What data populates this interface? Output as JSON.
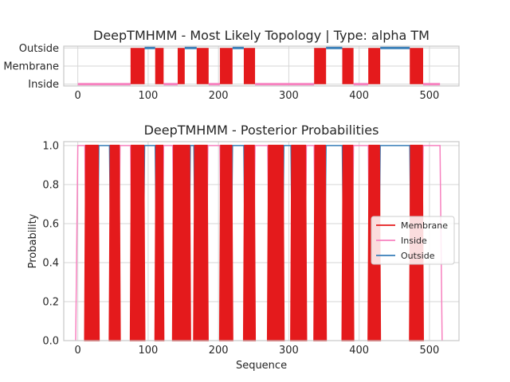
{
  "chart_data": [
    {
      "type": "line",
      "title": "DeepTMHMM - Most Likely Topology | Type: alpha TM",
      "xlim": [
        -20,
        542
      ],
      "ylim": [
        -0.1,
        2.1
      ],
      "x_ticks": [
        "0",
        "100",
        "200",
        "300",
        "400",
        "500"
      ],
      "x_tick_values": [
        0,
        100,
        200,
        300,
        400,
        500
      ],
      "y_ticks": [
        "Inside",
        "Membrane",
        "Outside"
      ],
      "y_tick_values": [
        0,
        1,
        2
      ],
      "grid": true,
      "colors": {
        "inside": "#f781bf",
        "membrane": "#e41a1c",
        "outside": "#377eb8"
      },
      "segments": [
        {
          "region": "Inside",
          "start": 0,
          "end": 75
        },
        {
          "region": "Membrane",
          "start": 75,
          "end": 95
        },
        {
          "region": "Outside",
          "start": 95,
          "end": 110
        },
        {
          "region": "Membrane",
          "start": 110,
          "end": 122
        },
        {
          "region": "Inside",
          "start": 122,
          "end": 142
        },
        {
          "region": "Membrane",
          "start": 142,
          "end": 152
        },
        {
          "region": "Outside",
          "start": 152,
          "end": 169
        },
        {
          "region": "Membrane",
          "start": 169,
          "end": 186
        },
        {
          "region": "Inside",
          "start": 186,
          "end": 202
        },
        {
          "region": "Membrane",
          "start": 202,
          "end": 220
        },
        {
          "region": "Outside",
          "start": 220,
          "end": 236
        },
        {
          "region": "Membrane",
          "start": 236,
          "end": 252
        },
        {
          "region": "Inside",
          "start": 252,
          "end": 336
        },
        {
          "region": "Membrane",
          "start": 336,
          "end": 353
        },
        {
          "region": "Outside",
          "start": 353,
          "end": 376
        },
        {
          "region": "Membrane",
          "start": 376,
          "end": 392
        },
        {
          "region": "Inside",
          "start": 392,
          "end": 413
        },
        {
          "region": "Membrane",
          "start": 413,
          "end": 430
        },
        {
          "region": "Outside",
          "start": 430,
          "end": 472
        },
        {
          "region": "Membrane",
          "start": 472,
          "end": 491
        },
        {
          "region": "Inside",
          "start": 491,
          "end": 515
        }
      ]
    },
    {
      "type": "line",
      "title": "DeepTMHMM - Posterior Probabilities",
      "xlabel": "Sequence",
      "ylabel": "Probability",
      "xlim": [
        -20,
        542
      ],
      "ylim": [
        0.0,
        1.02
      ],
      "x_ticks": [
        "0",
        "100",
        "200",
        "300",
        "400",
        "500"
      ],
      "x_tick_values": [
        0,
        100,
        200,
        300,
        400,
        500
      ],
      "y_ticks": [
        "0.0",
        "0.2",
        "0.4",
        "0.6",
        "0.8",
        "1.0"
      ],
      "y_tick_values": [
        0.0,
        0.2,
        0.4,
        0.6,
        0.8,
        1.0
      ],
      "grid": true,
      "legend_position": "center-right",
      "series": [
        {
          "name": "Membrane",
          "color": "#e41a1c"
        },
        {
          "name": "Inside",
          "color": "#f781bf"
        },
        {
          "name": "Outside",
          "color": "#377eb8"
        }
      ],
      "membrane_peaks": [
        [
          10,
          30
        ],
        [
          45,
          60
        ],
        [
          75,
          95
        ],
        [
          110,
          122
        ],
        [
          135,
          160
        ],
        [
          165,
          185
        ],
        [
          202,
          220
        ],
        [
          236,
          252
        ],
        [
          270,
          293
        ],
        [
          303,
          325
        ],
        [
          336,
          353
        ],
        [
          376,
          392
        ],
        [
          413,
          430
        ],
        [
          472,
          491
        ]
      ],
      "region_states": [
        {
          "state": "Inside",
          "start": 0,
          "end": 10
        },
        {
          "state": "Outside",
          "start": 30,
          "end": 45
        },
        {
          "state": "Inside",
          "start": 60,
          "end": 75
        },
        {
          "state": "Outside",
          "start": 95,
          "end": 110
        },
        {
          "state": "Inside",
          "start": 122,
          "end": 135
        },
        {
          "state": "Outside",
          "start": 160,
          "end": 165
        },
        {
          "state": "Inside",
          "start": 185,
          "end": 202
        },
        {
          "state": "Outside",
          "start": 220,
          "end": 236
        },
        {
          "state": "Inside",
          "start": 252,
          "end": 270
        },
        {
          "state": "Outside",
          "start": 293,
          "end": 303
        },
        {
          "state": "Inside",
          "start": 325,
          "end": 336
        },
        {
          "state": "Outside",
          "start": 353,
          "end": 376
        },
        {
          "state": "Inside",
          "start": 392,
          "end": 413
        },
        {
          "state": "Outside",
          "start": 430,
          "end": 472
        },
        {
          "state": "Inside",
          "start": 491,
          "end": 515
        }
      ]
    }
  ]
}
